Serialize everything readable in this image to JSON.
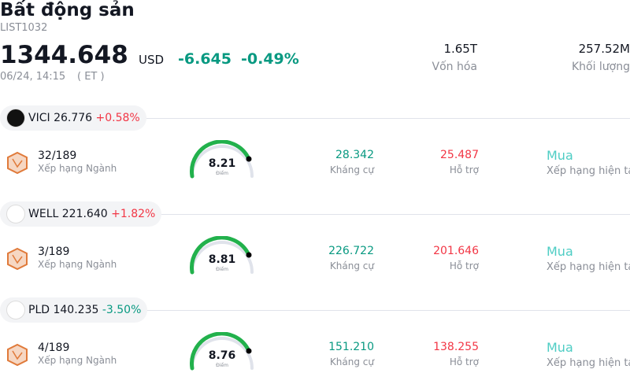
{
  "header": {
    "title": "Bất động sản",
    "code": "LIST1032",
    "price": "1344.648",
    "currency": "USD",
    "change": "-6.645",
    "change_pct": "-0.49%",
    "time": "06/24, 14:15",
    "timezone": "( ET )",
    "market_cap": "1.65T",
    "market_cap_label": "Vốn hóa",
    "volume": "257.52M",
    "volume_label": "Khối lượng"
  },
  "stocks": [
    {
      "ticker": "VICI",
      "price": "26.776",
      "change": "+0.58%",
      "rank": "32/189",
      "rank_label": "Xếp hạng Ngành",
      "score": "8.21",
      "score_label": "Điểm",
      "resistance": "28.342",
      "resistance_label": "Kháng cự",
      "support": "25.487",
      "support_label": "Hỗ trợ",
      "rating": "Mua",
      "rating_label": "Xếp hạng hiện tại"
    },
    {
      "ticker": "WELL",
      "price": "221.640",
      "change": "+1.82%",
      "rank": "3/189",
      "rank_label": "Xếp hạng Ngành",
      "score": "8.81",
      "score_label": "Điểm",
      "resistance": "226.722",
      "resistance_label": "Kháng cự",
      "support": "201.646",
      "support_label": "Hỗ trợ",
      "rating": "Mua",
      "rating_label": "Xếp hạng hiện tại"
    },
    {
      "ticker": "PLD",
      "price": "140.235",
      "change": "-3.50%",
      "rank": "4/189",
      "rank_label": "Xếp hạng Ngành",
      "score": "8.76",
      "score_label": "Điểm",
      "resistance": "151.210",
      "resistance_label": "Kháng cự",
      "support": "138.255",
      "support_label": "Hỗ trợ",
      "rating": "Mua",
      "rating_label": "Xếp hạng hiện tại"
    }
  ]
}
